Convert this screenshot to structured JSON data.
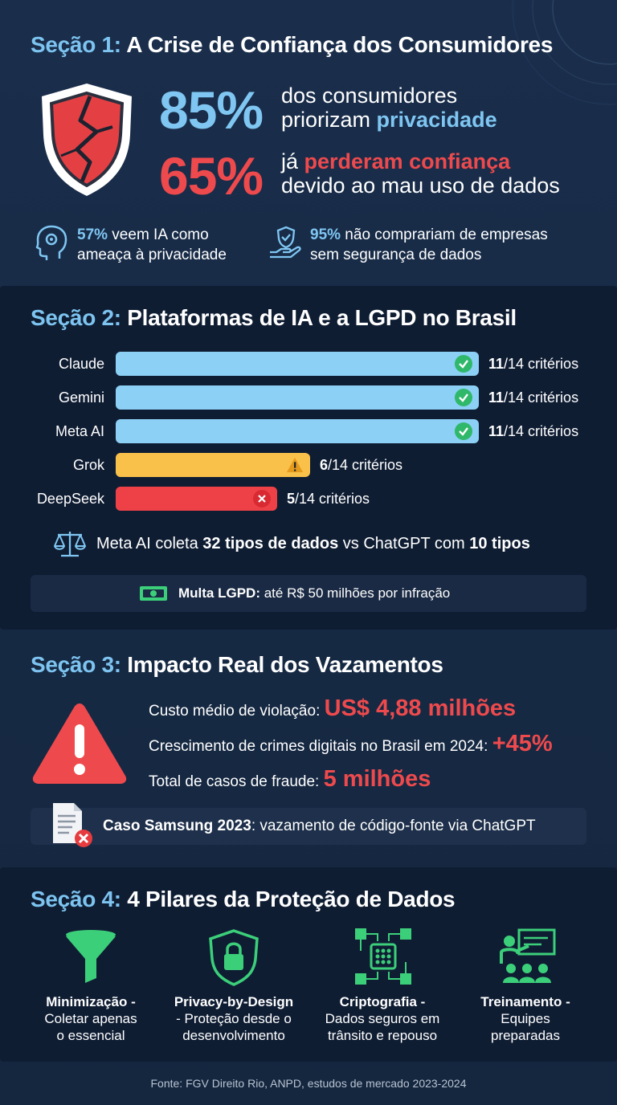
{
  "section1": {
    "num": "Seção 1:",
    "title": "A Crise de Confiança dos Consumidores",
    "stat1": {
      "value": "85%",
      "line1": "dos consumidores",
      "line2_pre": "priorizam ",
      "line2_hl": "privacidade"
    },
    "stat2": {
      "value": "65%",
      "line1_pre": "já ",
      "line1_hl": "perderam confiança",
      "line2": "devido ao mau uso de dados"
    },
    "mini1": {
      "value": "57%",
      "text1": " veem IA como",
      "text2": "ameaça à privacidade"
    },
    "mini2": {
      "value": "95%",
      "text1": " não comprariam de empresas",
      "text2": "sem segurança de dados"
    },
    "colors": {
      "blue": "#7fc6f2",
      "red": "#ee4a4d"
    },
    "icons": [
      "broken-shield-icon",
      "head-gear-icon",
      "hand-shield-icon"
    ]
  },
  "chart_data": {
    "type": "bar",
    "orientation": "horizontal",
    "title": "Plataformas de IA e a LGPD no Brasil",
    "categories": [
      "Claude",
      "Gemini",
      "Meta AI",
      "Grok",
      "DeepSeek"
    ],
    "values": [
      11,
      11,
      11,
      6,
      5
    ],
    "max": 14,
    "value_labels": [
      {
        "num": "11",
        "rest": "/14 critérios"
      },
      {
        "num": "11",
        "rest": "/14 critérios"
      },
      {
        "num": "11",
        "rest": "/14 critérios"
      },
      {
        "num": "6",
        "rest": "/14 critérios"
      },
      {
        "num": "5",
        "rest": "/14 critérios"
      }
    ],
    "colors": [
      "#8dd0f6",
      "#8dd0f6",
      "#8dd0f6",
      "#f9c04a",
      "#ee4147"
    ],
    "status_icons": [
      "check-icon",
      "check-icon",
      "check-icon",
      "warning-icon",
      "x-icon"
    ]
  },
  "section2": {
    "num": "Seção 2:",
    "title": "Plataformas de IA e a LGPD no Brasil",
    "compare": {
      "a": "Meta AI coleta ",
      "b": "32 tipos de dados",
      "c": " vs ChatGPT com ",
      "d": "10 tipos"
    },
    "fine": {
      "bold": "Multa LGPD:",
      "rest": " até R$ 50 milhões por infração"
    },
    "icons": [
      "scales-icon",
      "money-icon"
    ]
  },
  "section3": {
    "num": "Seção 3:",
    "title": "Impacto Real dos Vazamentos",
    "line1": {
      "label": "Custo médio de violação: ",
      "value": "US$ 4,88 milhões"
    },
    "line2": {
      "label": "Crescimento de crimes digitais no Brasil em 2024: ",
      "value": "+45%"
    },
    "line3": {
      "label": "Total de casos de fraude: ",
      "value": "5 milhões"
    },
    "case": {
      "bold": "Caso Samsung 2023",
      "rest": ": vazamento de código-fonte via ChatGPT"
    },
    "icons": [
      "warning-triangle-icon",
      "document-error-icon"
    ]
  },
  "section4": {
    "num": "Seção 4:",
    "title": "4 Pilares da Proteção de Dados",
    "pillars": [
      {
        "title": "Minimização -",
        "desc1": "Coletar apenas",
        "desc2": "o essencial",
        "icon": "funnel-icon"
      },
      {
        "title": "Privacy-by-Design",
        "desc1": "- Proteção desde o",
        "desc2": "desenvolvimento",
        "icon": "lock-shield-icon"
      },
      {
        "title": "Criptografia -",
        "desc1": "Dados seguros em",
        "desc2": "trânsito e repouso",
        "icon": "encryption-chip-icon"
      },
      {
        "title": "Treinamento -",
        "desc1": "Equipes",
        "desc2": "preparadas",
        "icon": "training-icon"
      }
    ],
    "icon_color": "#3ccf7a"
  },
  "source": "Fonte: FGV Direito Rio, ANPD, estudos de mercado 2023-2024"
}
